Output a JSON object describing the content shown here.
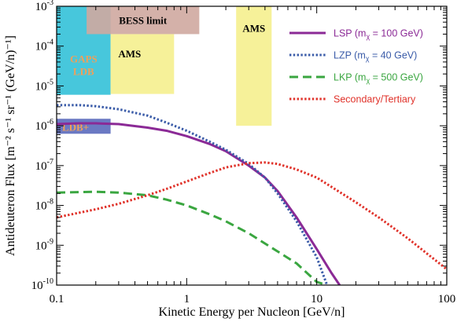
{
  "chart_data": {
    "type": "line",
    "xlabel": "Kinetic Energy per Nucleon [GeV/n]",
    "ylabel": "Antideuteron Flux [m⁻² s⁻¹ sr⁻¹ (GeV/n)⁻¹]",
    "xscale": "log",
    "yscale": "log",
    "xlim": [
      0.1,
      100
    ],
    "ylim": [
      1e-10,
      0.001
    ],
    "x_ticks": [
      {
        "value": 0.1,
        "label": "0.1"
      },
      {
        "value": 1,
        "label": "1"
      },
      {
        "value": 10,
        "label": "10"
      },
      {
        "value": 100,
        "label": "100"
      }
    ],
    "y_ticks": [
      {
        "value": 1e-10,
        "base": "10",
        "exp": "-10"
      },
      {
        "value": 1e-09,
        "base": "10",
        "exp": "-9"
      },
      {
        "value": 1e-08,
        "base": "10",
        "exp": "-8"
      },
      {
        "value": 1e-07,
        "base": "10",
        "exp": "-7"
      },
      {
        "value": 1e-06,
        "base": "10",
        "exp": "-6"
      },
      {
        "value": 1e-05,
        "base": "10",
        "exp": "-5"
      },
      {
        "value": 0.0001,
        "base": "10",
        "exp": "-4"
      },
      {
        "value": 0.001,
        "base": "10",
        "exp": "-3"
      }
    ],
    "grid": false,
    "legend_position": "top-right",
    "regions": [
      {
        "name": "GAPS LDB",
        "label_lines": [
          "GAPS",
          "LDB"
        ],
        "color": "#33c1d8",
        "label_color": "#f0a05a",
        "x": [
          0.1,
          0.26
        ],
        "y": [
          6e-06,
          0.001
        ]
      },
      {
        "name": "LDB+",
        "label_lines": [
          "LDB+"
        ],
        "color": "#5b6abd",
        "label_color": "#f0a05a",
        "x": [
          0.1,
          0.26
        ],
        "y": [
          6.3e-07,
          1.5e-06
        ]
      },
      {
        "name": "BESS limit",
        "label_lines": [
          "BESS limit"
        ],
        "color": "#cfa8a0",
        "label_color": "#000000",
        "x": [
          0.17,
          1.25
        ],
        "y": [
          0.0002,
          0.001
        ]
      },
      {
        "name": "AMS",
        "label_lines": [
          "AMS"
        ],
        "color": "#f5f08e",
        "label_color": "#000000",
        "x": [
          0.26,
          0.8
        ],
        "y": [
          6.3e-06,
          0.0002
        ]
      },
      {
        "name": "AMS",
        "label_lines": [
          "AMS"
        ],
        "color": "#f5f08e",
        "label_color": "#000000",
        "x": [
          2.4,
          4.5
        ],
        "y": [
          1e-06,
          0.001
        ]
      }
    ],
    "series": [
      {
        "name": "LSP (mχ = 100 GeV)",
        "legend_main": "LSP (m",
        "legend_sub": "χ",
        "legend_tail": " = 100 GeV)",
        "color": "#8b2a96",
        "style": "solid",
        "x": [
          0.1,
          0.15,
          0.2,
          0.3,
          0.5,
          0.7,
          1,
          1.5,
          2,
          3,
          4,
          5,
          7,
          10,
          13,
          15
        ],
        "y": [
          1.1e-06,
          1.15e-06,
          1.15e-06,
          1.1e-06,
          9e-07,
          7.5e-07,
          5.5e-07,
          3.5e-07,
          2.3e-07,
          1e-07,
          5e-08,
          2.3e-08,
          5e-09,
          8e-10,
          2e-10,
          1e-10
        ]
      },
      {
        "name": "LZP (mχ = 40 GeV)",
        "legend_main": "LZP (m",
        "legend_sub": "χ",
        "legend_tail": " = 40 GeV)",
        "color": "#3a5ba8",
        "style": "dotted",
        "x": [
          0.1,
          0.15,
          0.2,
          0.3,
          0.5,
          0.7,
          1,
          1.5,
          2,
          3,
          4,
          5,
          7,
          10,
          12
        ],
        "y": [
          3.3e-06,
          3.3e-06,
          3.1e-06,
          2.6e-06,
          1.8e-06,
          1.2e-06,
          7.5e-07,
          4e-07,
          2.5e-07,
          1.1e-07,
          5e-08,
          2e-08,
          4e-09,
          5e-10,
          1e-10
        ]
      },
      {
        "name": "LKP (mχ = 500 GeV)",
        "legend_main": "LKP (m",
        "legend_sub": "χ",
        "legend_tail": " = 500 GeV)",
        "color": "#3aa640",
        "style": "dashed",
        "x": [
          0.1,
          0.2,
          0.3,
          0.5,
          0.7,
          1,
          1.5,
          2,
          3,
          5,
          7,
          10,
          12
        ],
        "y": [
          2.1e-08,
          2.2e-08,
          2.1e-08,
          1.8e-08,
          1.4e-08,
          1e-08,
          6e-09,
          4e-09,
          2e-09,
          7e-10,
          3.5e-10,
          1.2e-10,
          1e-10
        ]
      },
      {
        "name": "Secondary/Tertiary",
        "legend_main": "Secondary/Tertiary",
        "legend_sub": "",
        "legend_tail": "",
        "color": "#e0322a",
        "style": "dotted",
        "x": [
          0.1,
          0.2,
          0.3,
          0.5,
          0.7,
          1,
          1.5,
          2,
          3,
          4,
          5,
          7,
          10,
          20,
          30,
          50,
          100
        ],
        "y": [
          5e-09,
          8e-09,
          1.1e-08,
          1.8e-08,
          2.6e-08,
          4e-08,
          6.5e-08,
          9e-08,
          1.15e-07,
          1.2e-07,
          1.1e-07,
          8e-08,
          5e-08,
          1.2e-08,
          5e-09,
          1.5e-09,
          2.5e-10
        ]
      }
    ]
  }
}
